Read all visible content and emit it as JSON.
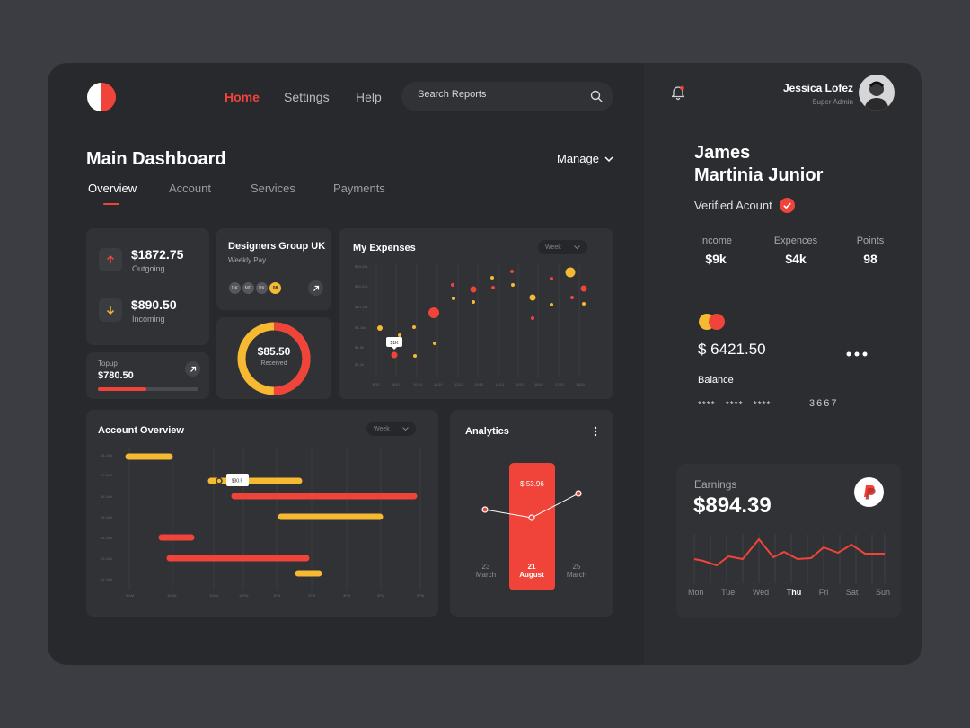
{
  "nav": {
    "home": "Home",
    "settings": "Settings",
    "help": "Help"
  },
  "search": {
    "placeholder": "Search Reports"
  },
  "user": {
    "name": "Jessica Lofez",
    "role": "Super Admin"
  },
  "page": {
    "title": "Main Dashboard",
    "manage": "Manage"
  },
  "tabs": [
    "Overview",
    "Account",
    "Services",
    "Payments"
  ],
  "outgoing": {
    "amount": "$1872.75",
    "label": "Outgoing"
  },
  "incoming": {
    "amount": "$890.50",
    "label": "Incoming"
  },
  "topup": {
    "label": "Topup",
    "amount": "$780.50",
    "progress": 0.48
  },
  "group": {
    "title": "Designers Group UK",
    "subtitle": "Weekly Pay",
    "members": [
      "DK",
      "MD",
      "PK"
    ],
    "extra": "08"
  },
  "received": {
    "amount": "$85.50",
    "label": "Received",
    "fraction": 0.5
  },
  "expenses": {
    "title": "My Expenses",
    "period": "Week",
    "tooltip": "$1K"
  },
  "account_overview": {
    "title": "Account Overview",
    "period": "Week",
    "tooltip": "$30.5"
  },
  "analytics": {
    "title": "Analytics",
    "highlight_value": "$ 53.96",
    "dates": [
      {
        "day": "23",
        "month": "March"
      },
      {
        "day": "21",
        "month": "August"
      },
      {
        "day": "25",
        "month": "March"
      }
    ]
  },
  "profile": {
    "first": "James",
    "last": "Martinia Junior",
    "verified": "Verified Acount",
    "stats": [
      {
        "label": "Income",
        "value": "$9k"
      },
      {
        "label": "Expences",
        "value": "$4k"
      },
      {
        "label": "Points",
        "value": "98"
      }
    ]
  },
  "card": {
    "amount": "$ 6421.50",
    "balance_label": "Balance",
    "mask": "****   ****   ****",
    "last4": "3667"
  },
  "earnings": {
    "label": "Earnings",
    "amount": "$894.39",
    "days": [
      "Mon",
      "Tue",
      "Wed",
      "Thu",
      "Fri",
      "Sat",
      "Sun"
    ],
    "active_day": "Thu"
  },
  "colors": {
    "accent": "#f0443a",
    "yellow": "#f6b932",
    "bg": "#28292d",
    "card": "#313236"
  }
}
